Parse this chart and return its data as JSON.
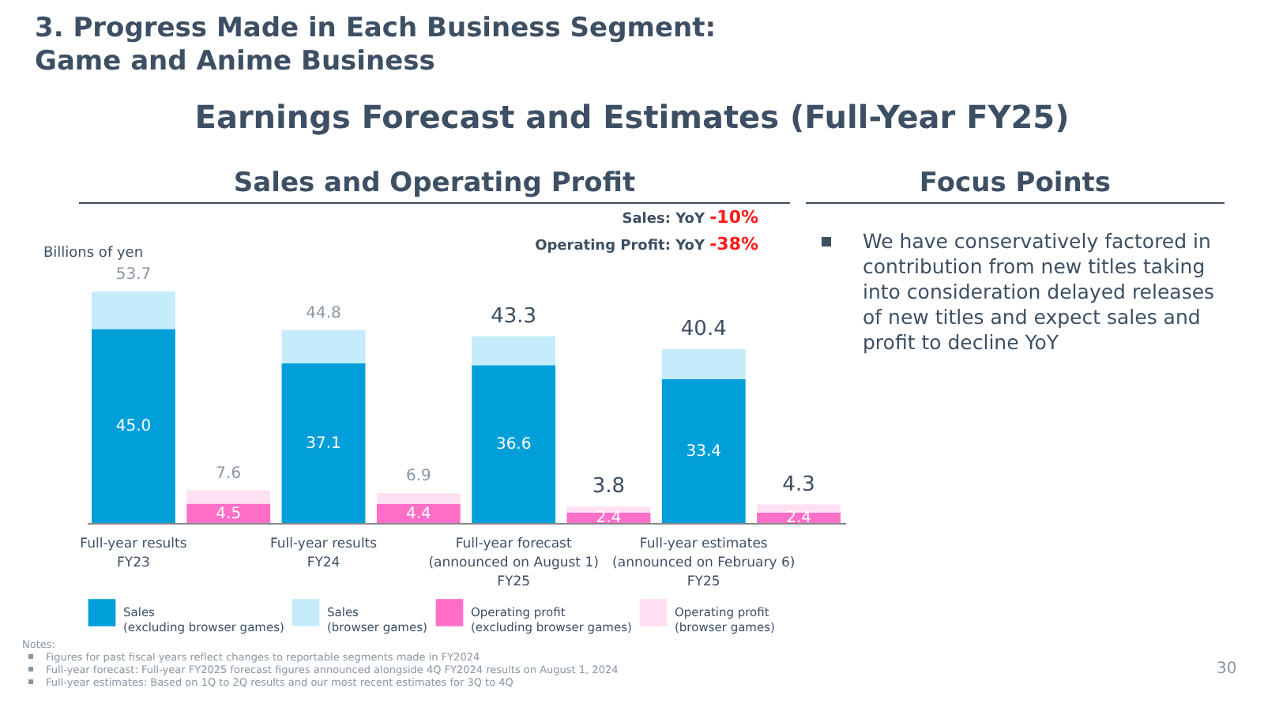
{
  "chart_data": {
    "type": "bar",
    "stacked": true,
    "title": "3. Progress Made in Each Business Segment:\nGame and Anime Business",
    "subtitle": "Earnings Forecast and Estimates (Full-Year FY25)",
    "ylabel": "Billions of yen",
    "categories": [
      "Full-year results\nFY23",
      null,
      "Full-year results\nFY24",
      null,
      "Full-year forecast\n(announced on August 1)\nFY25",
      null,
      "Full-year estimates\n(announced on February 6)\nFY25",
      null
    ],
    "series": [
      {
        "name": "Sales (excluding browser games)",
        "color": "#009fd9",
        "values": [
          45.0,
          null,
          37.1,
          null,
          36.6,
          null,
          33.4,
          null
        ],
        "value_labels": [
          "45.0",
          null,
          "37.1",
          null,
          "36.6",
          null,
          "33.4",
          null
        ]
      },
      {
        "name": "Sales (browser games)",
        "color": "#c5ecfb",
        "values": [
          8.7,
          null,
          7.7,
          null,
          6.7,
          null,
          7.0,
          null
        ]
      },
      {
        "name": "Operating profit (excluding browser games)",
        "color": "#ff6ec7",
        "values": [
          null,
          4.5,
          null,
          4.4,
          null,
          2.4,
          null,
          2.4
        ],
        "value_labels": [
          null,
          "4.5",
          null,
          "4.4",
          null,
          "2.4",
          null,
          "2.4"
        ]
      },
      {
        "name": "Operating profit (browser games)",
        "color": "#ffe0f2",
        "values": [
          null,
          3.1,
          null,
          2.5,
          null,
          1.4,
          null,
          1.9
        ]
      }
    ],
    "totals": [
      "53.7",
      "7.6",
      "44.8",
      "6.9",
      "43.3",
      "3.8",
      "40.4",
      "4.3"
    ],
    "tick_labels": "x",
    "grid": false,
    "legend": "bottom",
    "annotations": [
      "Sales and Operating Profit",
      "Sales: YoY -10%",
      "Operating Profit: YoY -38%",
      "Focus Points",
      "We have conservatively factored in contribution from new titles taking into consideration delayed releases of new titles and expect sales and profit to decline YoY",
      "Notes:",
      "Figures for past fiscal years reflect changes to reportable segments made in FY2024",
      "Full-year forecast: Full-year FY2025 forecast figures announced alongside 4Q FY2024 results on August 1, 2024",
      "Full-year estimates: Based on 1Q to 2Q results and our most recent estimates for 3Q to 4Q",
      "30"
    ]
  }
}
